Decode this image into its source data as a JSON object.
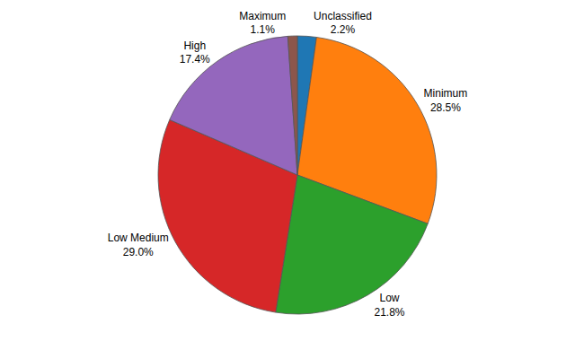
{
  "chart_data": {
    "type": "pie",
    "categories": [
      "Unclassified",
      "Minimum",
      "Low",
      "Low Medium",
      "High",
      "Maximum"
    ],
    "values": [
      2.2,
      28.5,
      21.8,
      29.0,
      17.4,
      1.1
    ],
    "value_labels": [
      "2.2%",
      "28.5%",
      "21.8%",
      "29.0%",
      "17.4%",
      "1.1%"
    ],
    "data_labels": true,
    "legend": false
  }
}
